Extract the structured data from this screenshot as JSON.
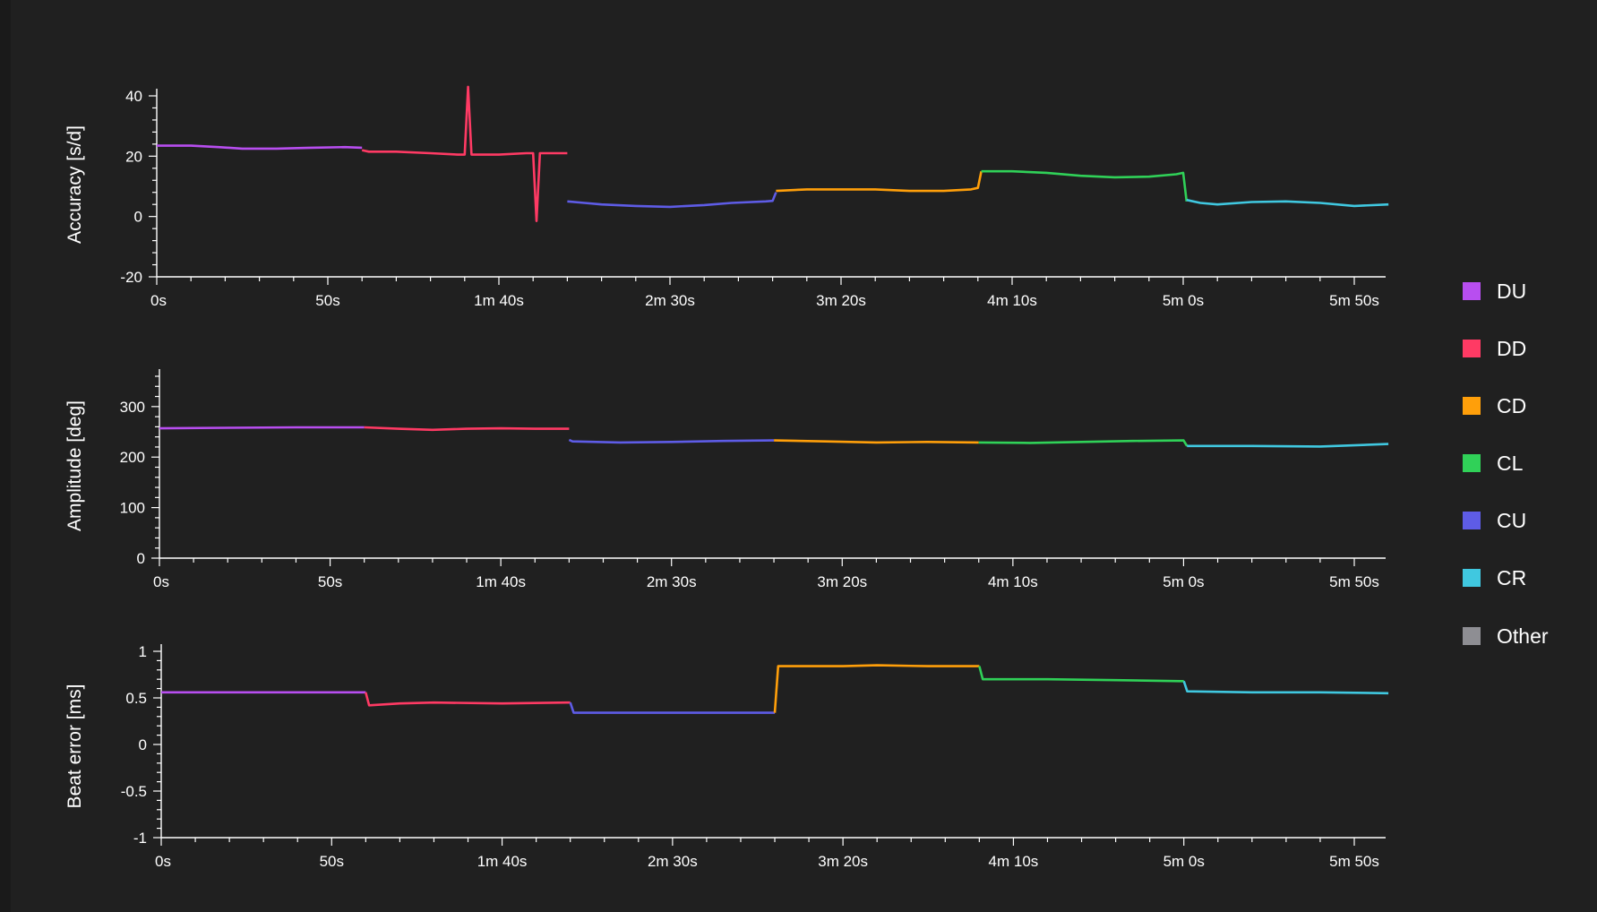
{
  "chart_data": [
    {
      "type": "line",
      "ylabel": "Accuracy [s/d]",
      "xlabel": "",
      "xlim": [
        0,
        360
      ],
      "ylim": [
        -20,
        40
      ],
      "xticks": [
        0,
        50,
        100,
        150,
        200,
        250,
        300,
        350
      ],
      "xtick_labels": [
        "0s",
        "50s",
        "1m 40s",
        "2m 30s",
        "3m 20s",
        "4m 10s",
        "5m 0s",
        "5m 50s"
      ],
      "yticks": [
        -20,
        0,
        20,
        40
      ],
      "ytick_labels": [
        "-20",
        "0",
        "20",
        "40"
      ],
      "series": [
        {
          "name": "DU",
          "points": [
            [
              0,
              23.5
            ],
            [
              10,
              23.5
            ],
            [
              18,
              23
            ],
            [
              25,
              22.5
            ],
            [
              35,
              22.5
            ],
            [
              45,
              22.8
            ],
            [
              55,
              23
            ],
            [
              60,
              22.8
            ]
          ]
        },
        {
          "name": "DD",
          "points": [
            [
              60,
              22
            ],
            [
              62,
              21.5
            ],
            [
              70,
              21.5
            ],
            [
              80,
              21
            ],
            [
              88,
              20.5
            ],
            [
              90,
              20.5
            ],
            [
              91,
              43
            ],
            [
              92,
              20.5
            ],
            [
              100,
              20.5
            ],
            [
              108,
              21
            ],
            [
              110,
              21
            ],
            [
              111,
              -1.5
            ],
            [
              112,
              21
            ],
            [
              118,
              21
            ],
            [
              120,
              21
            ]
          ]
        },
        {
          "name": "CU",
          "points": [
            [
              120,
              5
            ],
            [
              125,
              4.5
            ],
            [
              130,
              4
            ],
            [
              140,
              3.5
            ],
            [
              150,
              3.2
            ],
            [
              160,
              3.8
            ],
            [
              168,
              4.5
            ],
            [
              178,
              5
            ],
            [
              180,
              5.2
            ],
            [
              181,
              8
            ]
          ]
        },
        {
          "name": "CD",
          "points": [
            [
              181,
              8.5
            ],
            [
              190,
              9
            ],
            [
              200,
              9
            ],
            [
              210,
              9
            ],
            [
              220,
              8.5
            ],
            [
              230,
              8.5
            ],
            [
              238,
              9
            ],
            [
              240,
              9.5
            ],
            [
              241,
              15
            ]
          ]
        },
        {
          "name": "CL",
          "points": [
            [
              241,
              15
            ],
            [
              250,
              15
            ],
            [
              260,
              14.5
            ],
            [
              270,
              13.5
            ],
            [
              280,
              13
            ],
            [
              290,
              13.2
            ],
            [
              298,
              14
            ],
            [
              300,
              14.5
            ],
            [
              301,
              5
            ]
          ]
        },
        {
          "name": "CR",
          "points": [
            [
              301,
              5.5
            ],
            [
              305,
              4.5
            ],
            [
              310,
              4
            ],
            [
              320,
              4.8
            ],
            [
              330,
              5
            ],
            [
              340,
              4.5
            ],
            [
              350,
              3.5
            ],
            [
              360,
              4
            ]
          ]
        }
      ]
    },
    {
      "type": "line",
      "ylabel": "Amplitude [deg]",
      "xlabel": "",
      "xlim": [
        0,
        360
      ],
      "ylim": [
        0,
        360
      ],
      "xticks": [
        0,
        50,
        100,
        150,
        200,
        250,
        300,
        350
      ],
      "xtick_labels": [
        "0s",
        "50s",
        "1m 40s",
        "2m 30s",
        "3m 20s",
        "4m 10s",
        "5m 0s",
        "5m 50s"
      ],
      "yticks": [
        0,
        100,
        200,
        300
      ],
      "ytick_labels": [
        "0",
        "100",
        "200",
        "300"
      ],
      "series": [
        {
          "name": "DU",
          "points": [
            [
              0,
              257
            ],
            [
              20,
              258
            ],
            [
              40,
              259
            ],
            [
              60,
              259
            ]
          ]
        },
        {
          "name": "DD",
          "points": [
            [
              60,
              259
            ],
            [
              70,
              256
            ],
            [
              80,
              254
            ],
            [
              90,
              256
            ],
            [
              100,
              257
            ],
            [
              110,
              256
            ],
            [
              120,
              256
            ]
          ]
        },
        {
          "name": "CU",
          "points": [
            [
              120,
              234
            ],
            [
              121,
              231
            ],
            [
              135,
              229
            ],
            [
              150,
              230
            ],
            [
              165,
              232
            ],
            [
              180,
              233
            ]
          ]
        },
        {
          "name": "CD",
          "points": [
            [
              180,
              233
            ],
            [
              195,
              231
            ],
            [
              210,
              229
            ],
            [
              225,
              230
            ],
            [
              240,
              229
            ]
          ]
        },
        {
          "name": "CL",
          "points": [
            [
              240,
              229
            ],
            [
              255,
              228
            ],
            [
              270,
              230
            ],
            [
              285,
              232
            ],
            [
              300,
              233
            ],
            [
              301,
              222
            ]
          ]
        },
        {
          "name": "CR",
          "points": [
            [
              301,
              222
            ],
            [
              320,
              222
            ],
            [
              340,
              221
            ],
            [
              360,
              226
            ]
          ]
        }
      ]
    },
    {
      "type": "line",
      "ylabel": "Beat error [ms]",
      "xlabel": "",
      "xlim": [
        0,
        360
      ],
      "ylim": [
        -1,
        1
      ],
      "xticks": [
        0,
        50,
        100,
        150,
        200,
        250,
        300,
        350
      ],
      "xtick_labels": [
        "0s",
        "50s",
        "1m 40s",
        "2m 30s",
        "3m 20s",
        "4m 10s",
        "5m 0s",
        "5m 50s"
      ],
      "yticks": [
        -1,
        -0.5,
        0,
        0.5,
        1
      ],
      "ytick_labels": [
        "-1",
        "-0.5",
        "0",
        "0.5",
        "1"
      ],
      "series": [
        {
          "name": "DU",
          "points": [
            [
              0,
              0.56
            ],
            [
              30,
              0.56
            ],
            [
              59,
              0.56
            ],
            [
              60,
              0.56
            ]
          ]
        },
        {
          "name": "DD",
          "points": [
            [
              60,
              0.56
            ],
            [
              61,
              0.42
            ],
            [
              70,
              0.44
            ],
            [
              80,
              0.45
            ],
            [
              100,
              0.44
            ],
            [
              119,
              0.45
            ],
            [
              120,
              0.45
            ]
          ]
        },
        {
          "name": "CU",
          "points": [
            [
              120,
              0.45
            ],
            [
              121,
              0.34
            ],
            [
              140,
              0.34
            ],
            [
              160,
              0.34
            ],
            [
              179,
              0.34
            ],
            [
              180,
              0.34
            ]
          ]
        },
        {
          "name": "CD",
          "points": [
            [
              180,
              0.34
            ],
            [
              181,
              0.84
            ],
            [
              200,
              0.84
            ],
            [
              210,
              0.85
            ],
            [
              225,
              0.84
            ],
            [
              239,
              0.84
            ],
            [
              240,
              0.84
            ]
          ]
        },
        {
          "name": "CL",
          "points": [
            [
              240,
              0.84
            ],
            [
              241,
              0.7
            ],
            [
              260,
              0.7
            ],
            [
              280,
              0.69
            ],
            [
              299,
              0.68
            ],
            [
              300,
              0.68
            ]
          ]
        },
        {
          "name": "CR",
          "points": [
            [
              300,
              0.68
            ],
            [
              301,
              0.57
            ],
            [
              320,
              0.56
            ],
            [
              340,
              0.56
            ],
            [
              360,
              0.55
            ]
          ]
        }
      ]
    }
  ],
  "legend": {
    "items": [
      {
        "label": "DU",
        "color": "#b84ef0"
      },
      {
        "label": "DD",
        "color": "#ff3a64"
      },
      {
        "label": "CD",
        "color": "#ff9f0a"
      },
      {
        "label": "CL",
        "color": "#30d158"
      },
      {
        "label": "CU",
        "color": "#5e5ce6"
      },
      {
        "label": "CR",
        "color": "#40c8e0"
      },
      {
        "label": "Other",
        "color": "#8e8e93"
      }
    ]
  },
  "colors": {
    "background": "#202020",
    "axis": "#ffffff"
  }
}
